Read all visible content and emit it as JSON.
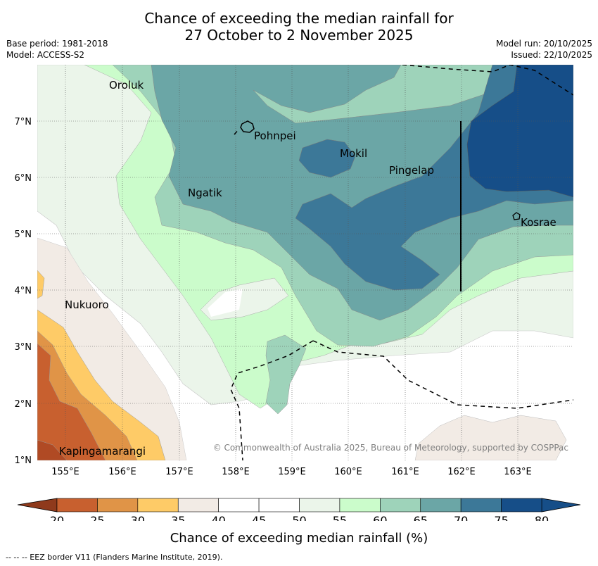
{
  "title": {
    "line1": "Chance of exceeding the median rainfall for",
    "line2": "27 October to 2 November 2025"
  },
  "meta": {
    "base_period": "Base period: 1981-2018",
    "model": "Model: ACCESS-S2",
    "model_run": "Model run: 20/10/2025",
    "issued": "Issued: 22/10/2025"
  },
  "map": {
    "lat_labels": [
      "7°N",
      "6°N",
      "5°N",
      "4°N",
      "3°N",
      "2°N",
      "1°N"
    ],
    "lon_labels": [
      "155°E",
      "156°E",
      "157°E",
      "158°E",
      "159°E",
      "160°E",
      "161°E",
      "162°E",
      "163°E"
    ],
    "places": [
      "Oroluk",
      "Pohnpei",
      "Mokil",
      "Pingelap",
      "Ngatik",
      "Kosrae",
      "Nukuoro",
      "Kapingamarangi"
    ],
    "copyright": "© Commonwealth of Australia 2025, Bureau of Meteorology, supported by COSPPac"
  },
  "colorbar": {
    "ticks": [
      "20",
      "25",
      "30",
      "35",
      "40",
      "45",
      "50",
      "55",
      "60",
      "65",
      "70",
      "75",
      "80"
    ],
    "colors": [
      "#b04a24",
      "#c8602f",
      "#e09447",
      "#fecb67",
      "#f2ebe5",
      "#ffffff",
      "#ffffff",
      "#ebf5ea",
      "#cbfccb",
      "#9ed3ba",
      "#6ba6a6",
      "#3c7898",
      "#164e88"
    ],
    "label": "Chance of exceeding median rainfall (%)"
  },
  "footer": "--  --  -- EEZ border V11 (Flanders Marine Institute, 2019)."
}
